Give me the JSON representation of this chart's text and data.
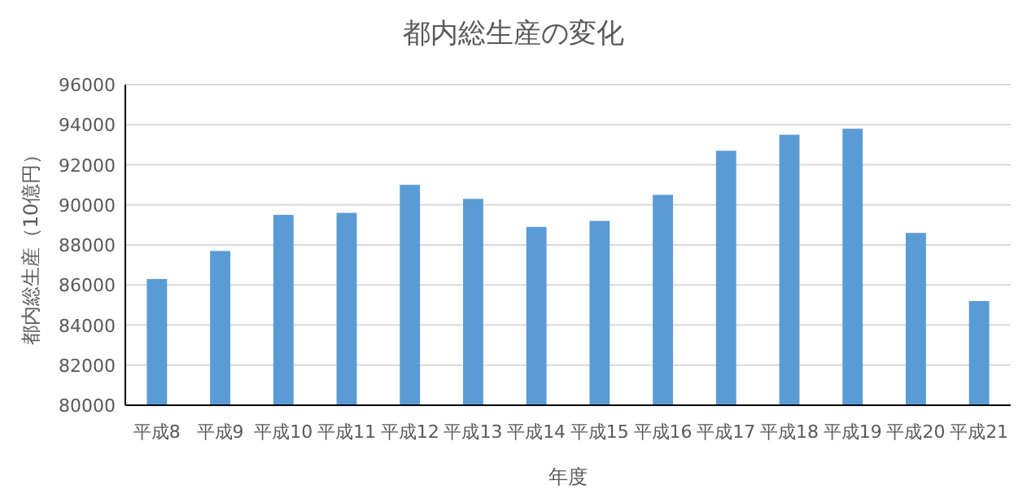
{
  "chart_data": {
    "type": "bar",
    "title": "都内総生産の変化",
    "xlabel": "年度",
    "ylabel": "都内総生産（10億円）",
    "categories": [
      "平成8",
      "平成9",
      "平成10",
      "平成11",
      "平成12",
      "平成13",
      "平成14",
      "平成15",
      "平成16",
      "平成17",
      "平成18",
      "平成19",
      "平成20",
      "平成21"
    ],
    "values": [
      86300,
      87700,
      89500,
      89600,
      91000,
      90300,
      88900,
      89200,
      90500,
      92700,
      93500,
      93800,
      88600,
      85200
    ],
    "color": "#5b9bd5",
    "ylim": [
      80000,
      96000
    ],
    "yticks": [
      80000,
      82000,
      84000,
      86000,
      88000,
      90000,
      92000,
      94000,
      96000
    ],
    "grid": "y"
  }
}
